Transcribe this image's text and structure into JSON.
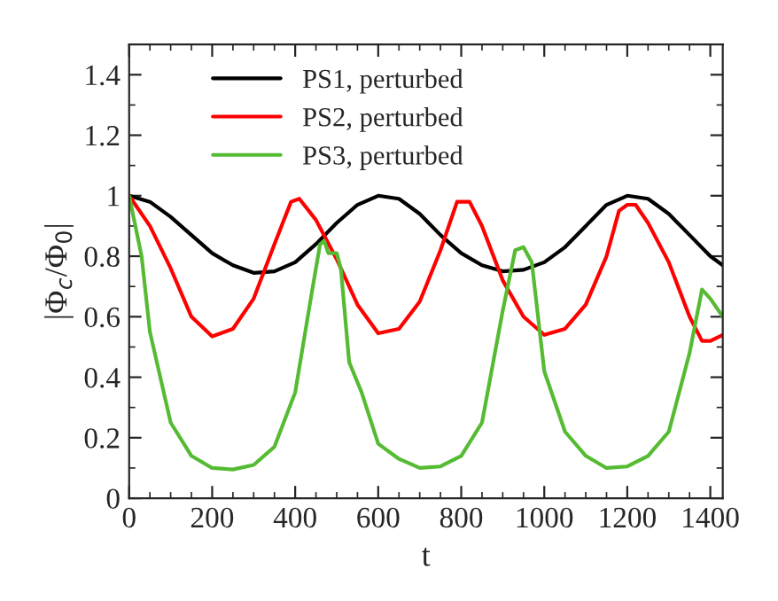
{
  "chart_data": {
    "type": "line",
    "xlabel": "t",
    "ylabel": "|Φ$_{c}$/Φ$_{0}$|",
    "xlim": [
      0,
      1430
    ],
    "ylim": [
      0,
      1.5
    ],
    "xticks": [
      0,
      200,
      400,
      600,
      800,
      1000,
      1200,
      1400
    ],
    "yticks": [
      0,
      0.2,
      0.4,
      0.6,
      0.8,
      1,
      1.2,
      1.4
    ],
    "grid": false,
    "legend": "top left",
    "marker": "none",
    "line_style": "solid",
    "series": [
      {
        "name": "PS1, perturbed",
        "color": "#000000",
        "x": [
          0,
          50,
          100,
          150,
          200,
          250,
          300,
          350,
          400,
          450,
          500,
          550,
          600,
          650,
          700,
          750,
          800,
          850,
          900,
          950,
          1000,
          1050,
          1100,
          1150,
          1200,
          1250,
          1300,
          1350,
          1400,
          1430
        ],
        "values": [
          1.0,
          0.98,
          0.93,
          0.87,
          0.81,
          0.77,
          0.745,
          0.75,
          0.78,
          0.84,
          0.91,
          0.97,
          1.0,
          0.99,
          0.94,
          0.87,
          0.81,
          0.77,
          0.75,
          0.755,
          0.78,
          0.83,
          0.9,
          0.97,
          1.0,
          0.99,
          0.94,
          0.87,
          0.8,
          0.77
        ]
      },
      {
        "name": "PS2, perturbed",
        "color": "#ff0000",
        "x": [
          0,
          50,
          100,
          150,
          200,
          250,
          300,
          350,
          390,
          410,
          450,
          500,
          550,
          600,
          650,
          700,
          750,
          790,
          820,
          850,
          900,
          950,
          1000,
          1050,
          1100,
          1150,
          1180,
          1200,
          1220,
          1250,
          1300,
          1350,
          1380,
          1400,
          1430
        ],
        "values": [
          1.0,
          0.9,
          0.76,
          0.6,
          0.535,
          0.56,
          0.66,
          0.84,
          0.98,
          0.99,
          0.92,
          0.79,
          0.64,
          0.545,
          0.56,
          0.65,
          0.82,
          0.98,
          0.98,
          0.9,
          0.72,
          0.6,
          0.54,
          0.56,
          0.64,
          0.8,
          0.95,
          0.97,
          0.97,
          0.91,
          0.78,
          0.6,
          0.52,
          0.52,
          0.54
        ]
      },
      {
        "name": "PS3, perturbed",
        "color": "#55bb33",
        "x": [
          0,
          30,
          50,
          100,
          150,
          200,
          250,
          300,
          350,
          400,
          440,
          460,
          470,
          480,
          500,
          510,
          530,
          560,
          600,
          650,
          700,
          750,
          800,
          850,
          900,
          930,
          950,
          970,
          1000,
          1050,
          1100,
          1150,
          1200,
          1250,
          1300,
          1350,
          1380,
          1400,
          1430
        ],
        "values": [
          1.0,
          0.8,
          0.55,
          0.25,
          0.14,
          0.1,
          0.095,
          0.11,
          0.17,
          0.35,
          0.68,
          0.84,
          0.85,
          0.81,
          0.81,
          0.76,
          0.45,
          0.35,
          0.18,
          0.13,
          0.1,
          0.105,
          0.14,
          0.25,
          0.62,
          0.82,
          0.83,
          0.78,
          0.42,
          0.22,
          0.14,
          0.1,
          0.105,
          0.14,
          0.22,
          0.48,
          0.69,
          0.66,
          0.6
        ]
      }
    ]
  }
}
